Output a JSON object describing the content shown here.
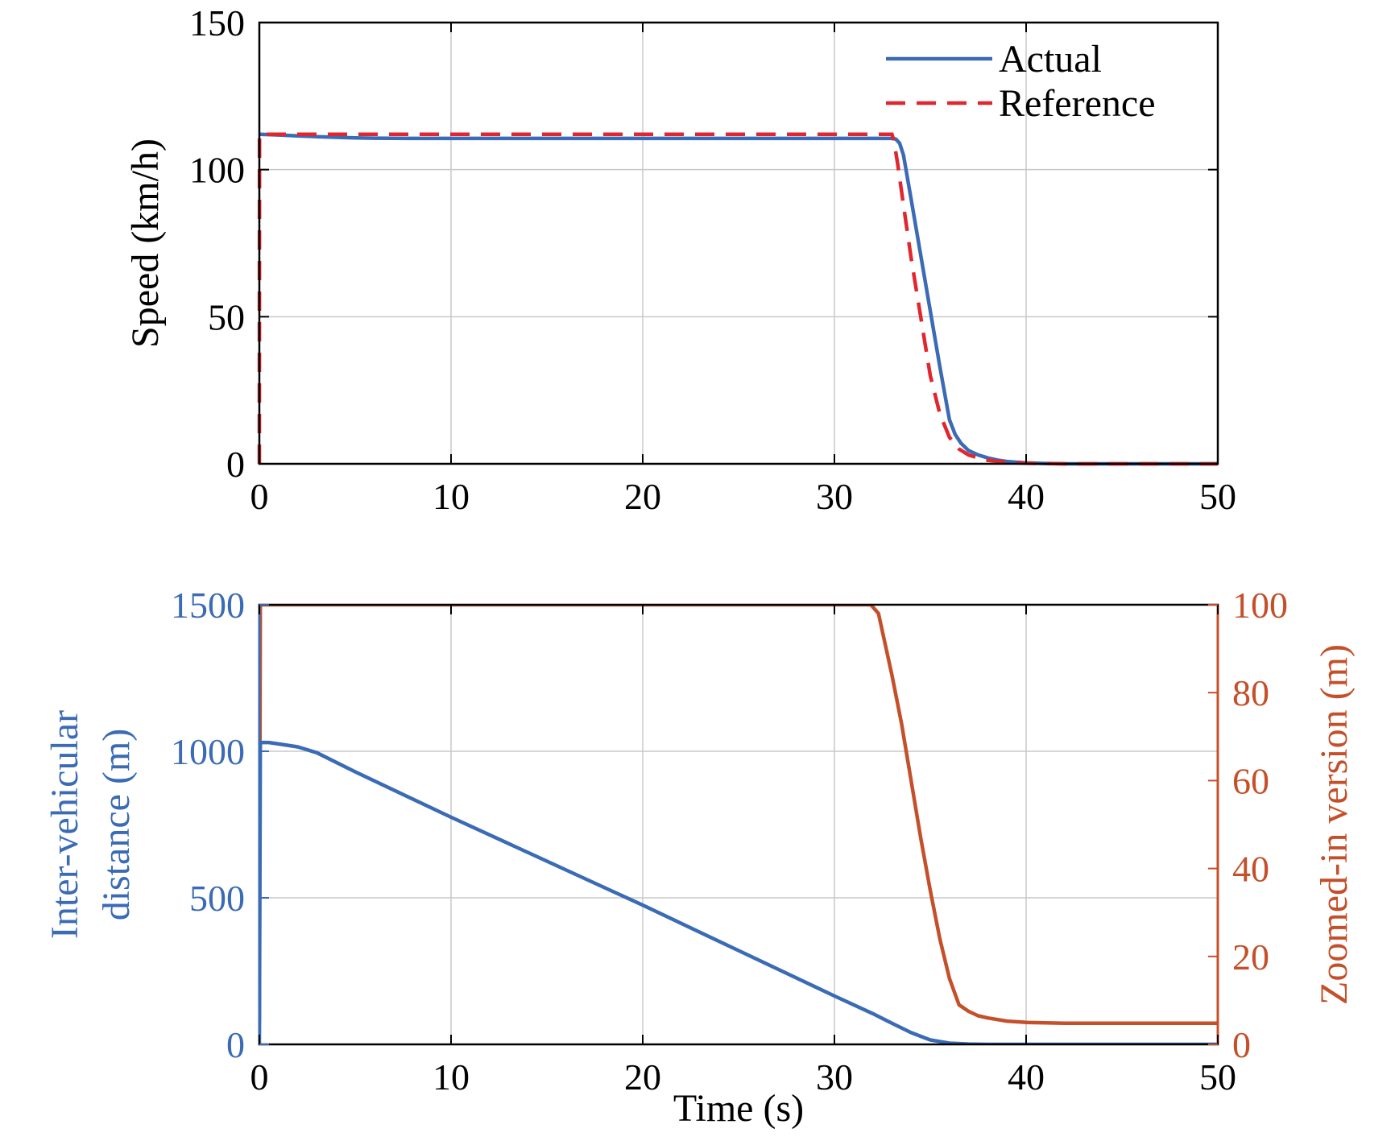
{
  "colors": {
    "actual": "#3b6bb5",
    "reference": "#e0262f",
    "left_axis": "#3b6bb5",
    "right_axis": "#c4502a",
    "grid": "#c8c8c8",
    "axis": "#000000"
  },
  "chart_data": [
    {
      "type": "line",
      "title": "",
      "xlabel": "",
      "ylabel": "Speed (km/h)",
      "xlim": [
        0,
        50
      ],
      "ylim": [
        0,
        150
      ],
      "xticks": [
        "0",
        "10",
        "20",
        "30",
        "40",
        "50"
      ],
      "yticks": [
        "0",
        "50",
        "100",
        "150"
      ],
      "grid": true,
      "legend_position": "top-right",
      "series": [
        {
          "name": "Actual",
          "style": "solid",
          "x": [
            0,
            1,
            2,
            3,
            4,
            5,
            6,
            8,
            10,
            15,
            20,
            25,
            30,
            33,
            33.2,
            33.4,
            33.6,
            34,
            34.5,
            35,
            35.5,
            36,
            36.3,
            36.6,
            37,
            37.5,
            38,
            38.5,
            39,
            40,
            41,
            42,
            45,
            50
          ],
          "y": [
            112,
            111.8,
            111.5,
            111.2,
            111,
            110.8,
            110.7,
            110.6,
            110.6,
            110.6,
            110.6,
            110.6,
            110.6,
            110.6,
            110.4,
            109,
            105,
            90,
            71,
            52,
            33,
            15,
            10,
            7,
            4.5,
            3,
            2,
            1.3,
            0.8,
            0.3,
            0.1,
            0,
            0,
            0
          ]
        },
        {
          "name": "Reference",
          "style": "dashed",
          "x": [
            0,
            0.01,
            1,
            10,
            20,
            30,
            33,
            33.1,
            33.3,
            33.6,
            34,
            34.5,
            35,
            35.5,
            36,
            36.5,
            37,
            37.5,
            38,
            39,
            40,
            41,
            42,
            45,
            50
          ],
          "y": [
            0,
            112,
            112,
            112,
            112,
            112,
            112,
            110,
            102,
            88,
            70,
            50,
            30,
            17,
            9,
            5,
            3,
            2,
            1.2,
            0.5,
            0.2,
            0.1,
            0,
            0,
            0
          ]
        }
      ],
      "legend": [
        "Actual",
        "Reference"
      ]
    },
    {
      "type": "line",
      "title": "",
      "xlabel": "Time (s)",
      "ylabel": "Inter-vehicular distance (m)",
      "ylabel_lines": [
        "Inter-vehicular",
        "distance (m)"
      ],
      "y2label": "Zoomed-in version (m)",
      "xlim": [
        0,
        50
      ],
      "ylim": [
        0,
        1500
      ],
      "y2lim": [
        0,
        100
      ],
      "xticks": [
        "0",
        "10",
        "20",
        "30",
        "40",
        "50"
      ],
      "yticks": [
        "0",
        "500",
        "1000",
        "1500"
      ],
      "y2ticks": [
        "0",
        "20",
        "40",
        "60",
        "80",
        "100"
      ],
      "grid": true,
      "series": [
        {
          "axis": "left",
          "x": [
            0,
            0.05,
            0.1,
            0.5,
            1,
            2,
            3,
            5,
            10,
            15,
            20,
            25,
            30,
            32,
            33,
            34,
            35,
            36,
            37,
            38,
            40,
            45,
            50
          ],
          "y": [
            0,
            1030,
            1030,
            1030,
            1025,
            1015,
            995,
            930,
            775,
            625,
            475,
            320,
            165,
            105,
            72,
            40,
            15,
            4,
            1,
            0,
            0,
            0,
            0
          ]
        },
        {
          "axis": "right",
          "x": [
            0,
            0.05,
            0.1,
            0.15,
            31.9,
            32.3,
            33,
            33.5,
            34,
            34.5,
            35,
            35.5,
            36,
            36.5,
            37,
            37.5,
            38,
            39,
            40,
            42,
            45,
            50
          ],
          "y": [
            5,
            100,
            100,
            100,
            100,
            98,
            84,
            73,
            60,
            47,
            35,
            24,
            15,
            9,
            7.5,
            6.5,
            6,
            5.3,
            5,
            4.8,
            4.8,
            4.8
          ]
        }
      ]
    }
  ]
}
